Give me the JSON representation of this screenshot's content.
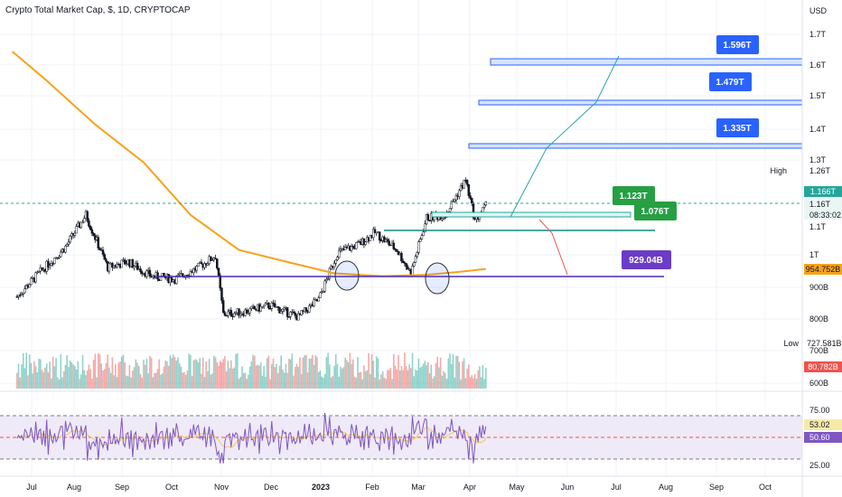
{
  "title": "Crypto Total Market Cap, $, 1D, CRYPTOCAP",
  "chart_data": [
    {
      "type": "candlestick",
      "title": "Crypto Total Market Cap, $, 1D, CRYPTOCAP",
      "currency_label": "USD",
      "y_ticks": [
        "1.7T",
        "1.6T",
        "1.5T",
        "1.4T",
        "1.3T",
        "1T",
        "900B",
        "800B",
        "700B",
        "600B"
      ],
      "x_ticks": [
        "Jul",
        "Aug",
        "Sep",
        "Oct",
        "Nov",
        "Dec",
        "2023",
        "Feb",
        "Mar",
        "Apr",
        "May",
        "Jun",
        "Jul",
        "Aug",
        "Sep",
        "Oct"
      ],
      "x_ticks_extra": [
        "1.1T"
      ],
      "price_series": [
        {
          "date": "2022-07-01",
          "value": 860
        },
        {
          "date": "2022-07-15",
          "value": 940
        },
        {
          "date": "2022-08-01",
          "value": 1030
        },
        {
          "date": "2022-08-14",
          "value": 1140
        },
        {
          "date": "2022-08-28",
          "value": 960
        },
        {
          "date": "2022-09-10",
          "value": 980
        },
        {
          "date": "2022-09-25",
          "value": 930
        },
        {
          "date": "2022-10-10",
          "value": 920
        },
        {
          "date": "2022-10-25",
          "value": 960
        },
        {
          "date": "2022-11-05",
          "value": 1000
        },
        {
          "date": "2022-11-10",
          "value": 800
        },
        {
          "date": "2022-11-25",
          "value": 810
        },
        {
          "date": "2022-12-10",
          "value": 830
        },
        {
          "date": "2022-12-28",
          "value": 790
        },
        {
          "date": "2023-01-10",
          "value": 850
        },
        {
          "date": "2023-01-22",
          "value": 1010
        },
        {
          "date": "2023-02-05",
          "value": 1040
        },
        {
          "date": "2023-02-15",
          "value": 1080
        },
        {
          "date": "2023-03-01",
          "value": 1020
        },
        {
          "date": "2023-03-10",
          "value": 940
        },
        {
          "date": "2023-03-20",
          "value": 1130
        },
        {
          "date": "2023-04-01",
          "value": 1140
        },
        {
          "date": "2023-04-14",
          "value": 1260
        },
        {
          "date": "2023-04-20",
          "value": 1120
        },
        {
          "date": "2023-04-27",
          "value": 1170
        }
      ],
      "moving_average": [
        {
          "date": "2022-06-28",
          "value": 1700
        },
        {
          "date": "2022-07-20",
          "value": 1600
        },
        {
          "date": "2022-08-20",
          "value": 1450
        },
        {
          "date": "2022-09-20",
          "value": 1320
        },
        {
          "date": "2022-10-20",
          "value": 1140
        },
        {
          "date": "2022-11-20",
          "value": 1020
        },
        {
          "date": "2022-12-20",
          "value": 980
        },
        {
          "date": "2023-01-20",
          "value": 940
        },
        {
          "date": "2023-02-20",
          "value": 930
        },
        {
          "date": "2023-03-20",
          "value": 935
        },
        {
          "date": "2023-04-10",
          "value": 945
        },
        {
          "date": "2023-04-27",
          "value": 955
        }
      ],
      "price_labels": {
        "high_tag": "High",
        "high_value": "1.26T",
        "current_value": "1.166T",
        "current_line2": "1.16T",
        "countdown": "08:33:02",
        "ma_value": "954.752B",
        "low_tag": "Low",
        "low_value": "727.581B",
        "volume_value": "80.782B"
      },
      "targets": [
        "1.596T",
        "1.479T",
        "1.335T",
        "1.123T",
        "1.076T",
        "929.04B"
      ],
      "target_values": [
        1596,
        1479,
        1335,
        1123,
        1076,
        929.04
      ],
      "rsi": {
        "ticks": [
          "75.00",
          "25.00"
        ],
        "value": "53.02",
        "ma_value": "50.60",
        "levels": [
          70,
          50,
          30
        ]
      },
      "colors": {
        "up": "#26a69a",
        "down": "#ef5350",
        "candle": "#131722",
        "moving_average": "#f7a21b",
        "support": "#6a3cc8",
        "target_box": "#2962ff",
        "green_target": "#26a043",
        "rsi": "#7e57c2"
      },
      "grid": true,
      "legend": "none"
    }
  ]
}
